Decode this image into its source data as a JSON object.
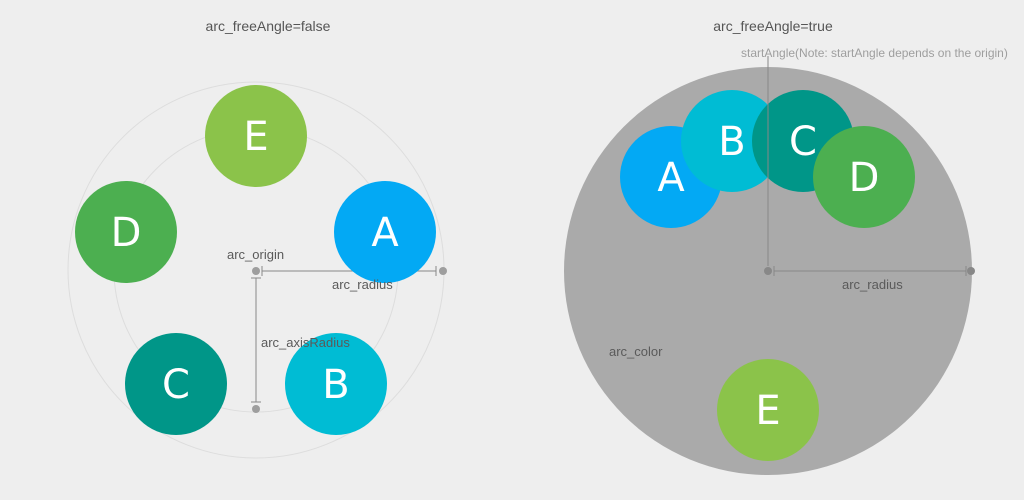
{
  "left": {
    "title": "arc_freeAngle=false",
    "labels": {
      "origin": "arc_origin",
      "radius": "arc_radius",
      "axis_radius": "arc_axisRadius"
    },
    "buttons": [
      {
        "letter": "A",
        "color": "#03a9f4"
      },
      {
        "letter": "B",
        "color": "#00bcd4"
      },
      {
        "letter": "C",
        "color": "#009688"
      },
      {
        "letter": "D",
        "color": "#4caf50"
      },
      {
        "letter": "E",
        "color": "#8bc34a"
      }
    ]
  },
  "right": {
    "title": "arc_freeAngle=true",
    "labels": {
      "start_angle_note": "startAngle(Note: startAngle depends on the origin)",
      "radius": "arc_radius",
      "color": "arc_color"
    },
    "arc_fill": "#aaaaaa",
    "buttons": [
      {
        "letter": "A",
        "color": "#03a9f4"
      },
      {
        "letter": "B",
        "color": "#00bcd4"
      },
      {
        "letter": "C",
        "color": "#009688"
      },
      {
        "letter": "D",
        "color": "#4caf50"
      },
      {
        "letter": "E",
        "color": "#8bc34a"
      }
    ]
  },
  "colors": {
    "guide_circle": "#dddddd",
    "guide_line": "#888888",
    "dot": "#9e9e9e"
  }
}
